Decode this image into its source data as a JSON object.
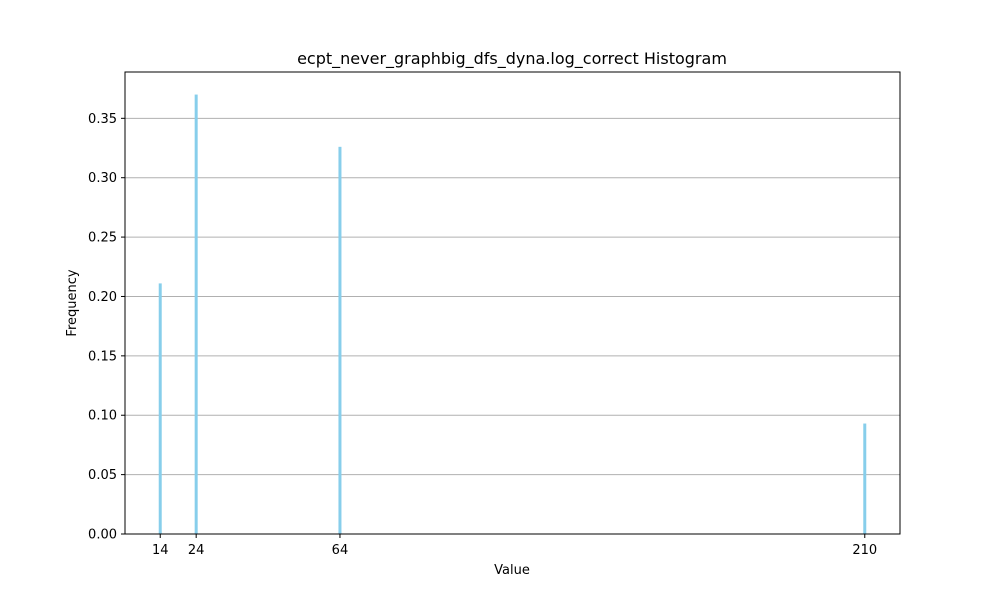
{
  "chart_data": {
    "type": "bar",
    "title": "ecpt_never_graphbig_dfs_dyna.log_correct Histogram",
    "xlabel": "Value",
    "ylabel": "Frequency",
    "x": [
      14,
      24,
      64,
      210
    ],
    "values": [
      0.211,
      0.37,
      0.326,
      0.093
    ],
    "xlim": [
      4.2,
      219.8
    ],
    "ylim": [
      0,
      0.389
    ],
    "x_ticks": [
      "14",
      "24",
      "64",
      "210"
    ],
    "y_ticks": [
      "0.00",
      "0.05",
      "0.10",
      "0.15",
      "0.20",
      "0.25",
      "0.30",
      "0.35"
    ],
    "y_tick_values": [
      0,
      0.05,
      0.1,
      0.15,
      0.2,
      0.25,
      0.3,
      0.35
    ],
    "grid": "y",
    "bar_color": "#87CEEB"
  }
}
